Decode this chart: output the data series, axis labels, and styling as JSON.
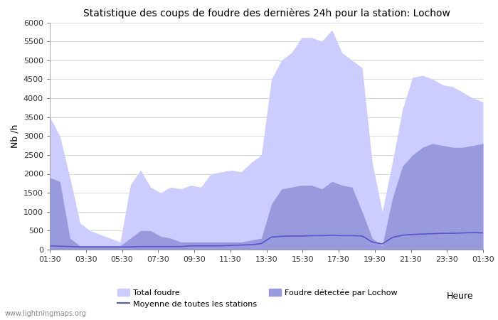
{
  "title": "Statistique des coups de foudre des dernières 24h pour la station: Lochow",
  "xlabel": "Heure",
  "ylabel": "Nb /h",
  "xlim_labels": [
    "01:30",
    "03:30",
    "05:30",
    "07:30",
    "09:30",
    "11:30",
    "13:30",
    "15:30",
    "17:30",
    "19:30",
    "21:30",
    "23:30",
    "01:30"
  ],
  "ylim": [
    0,
    6000
  ],
  "yticks": [
    0,
    500,
    1000,
    1500,
    2000,
    2500,
    3000,
    3500,
    4000,
    4500,
    5000,
    5500,
    6000
  ],
  "color_total": "#ccccff",
  "color_local": "#9999dd",
  "color_mean_line": "#5555cc",
  "watermark": "www.lightningmaps.org",
  "total_foudre": [
    3500,
    3000,
    1900,
    700,
    500,
    400,
    300,
    200,
    1700,
    2100,
    1650,
    1500,
    1650,
    1600,
    1700,
    1650,
    2000,
    2050,
    2100,
    2050,
    2300,
    2500,
    4500,
    5000,
    5200,
    5600,
    5600,
    5500,
    5800,
    5200,
    5000,
    4800,
    2300,
    1000,
    2300,
    3700,
    4550,
    4600,
    4500,
    4350,
    4300,
    4150,
    4000,
    3900
  ],
  "local_foudre": [
    1900,
    1800,
    300,
    100,
    100,
    100,
    100,
    100,
    300,
    500,
    500,
    350,
    300,
    200,
    200,
    200,
    200,
    200,
    200,
    200,
    250,
    300,
    1200,
    1600,
    1650,
    1700,
    1700,
    1600,
    1800,
    1700,
    1650,
    1000,
    300,
    100,
    1350,
    2200,
    2500,
    2700,
    2800,
    2750,
    2700,
    2700,
    2750,
    2800
  ],
  "mean_line": [
    100,
    90,
    80,
    70,
    70,
    70,
    70,
    70,
    70,
    80,
    80,
    80,
    80,
    80,
    100,
    100,
    100,
    100,
    110,
    120,
    130,
    160,
    330,
    350,
    360,
    360,
    370,
    370,
    380,
    370,
    370,
    360,
    200,
    150,
    320,
    380,
    400,
    410,
    420,
    430,
    430,
    440,
    450,
    440
  ]
}
